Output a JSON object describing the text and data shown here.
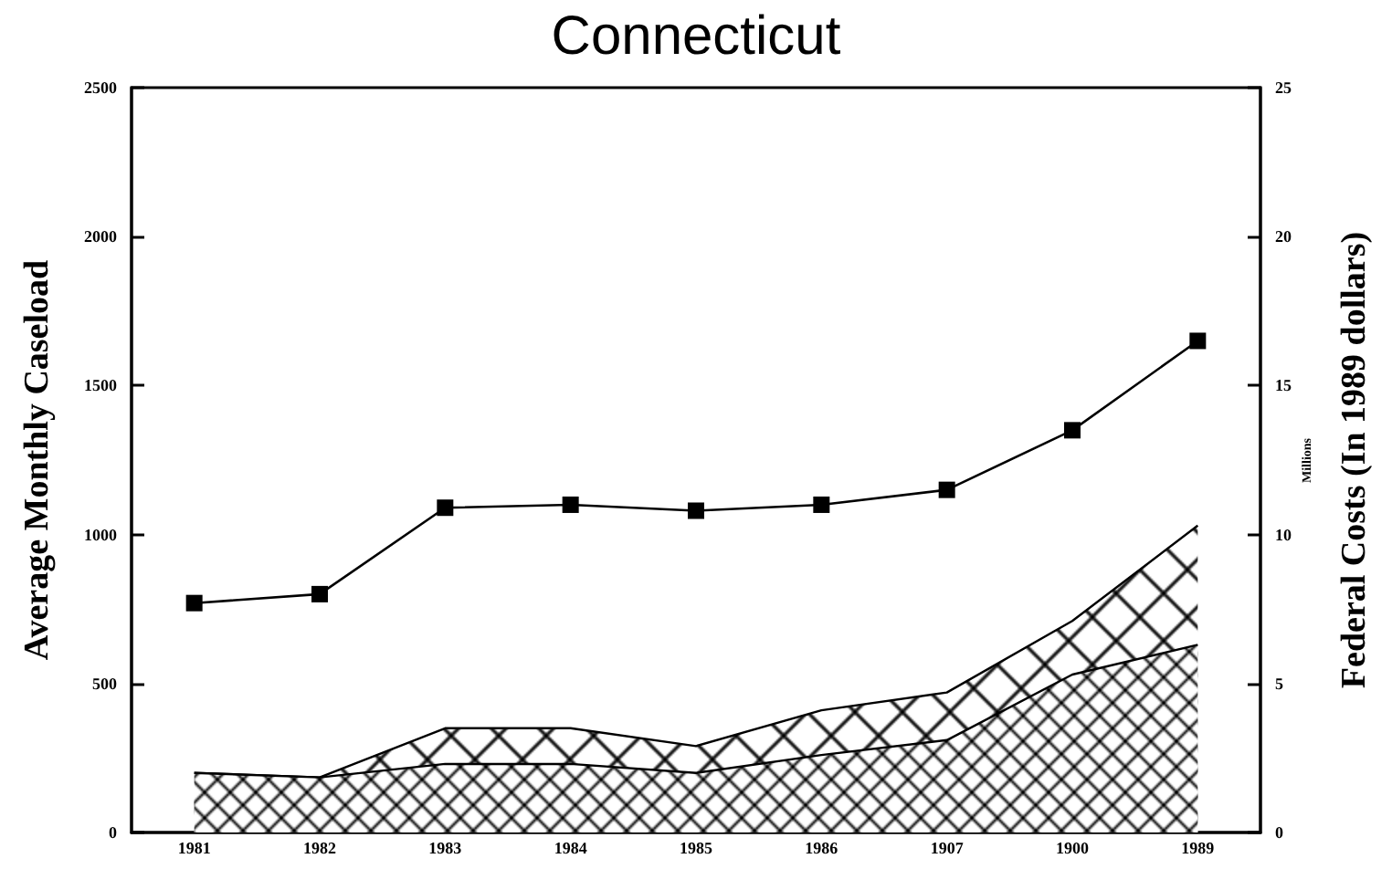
{
  "chart_data": {
    "type": "line",
    "title": "Connecticut",
    "ylabel": "Average Monthly Caseload",
    "y2label": "Federal Costs (In 1989 dollars)",
    "annotations": [
      "Millions"
    ],
    "categories": [
      "1981",
      "1982",
      "1983",
      "1984",
      "1985",
      "1986",
      "1907",
      "1900",
      "1989"
    ],
    "series": [
      {
        "type": "area",
        "axis": "y2",
        "color": "#000000",
        "values": [
          2.0,
          1.85,
          3.5,
          3.5,
          2.9,
          4.1,
          4.7,
          7.1,
          10.3
        ]
      },
      {
        "type": "area",
        "axis": "y2",
        "color": "#000000",
        "values": [
          2.0,
          1.85,
          2.3,
          2.3,
          2.0,
          2.6,
          3.1,
          5.3,
          6.3
        ]
      },
      {
        "color": "#000000",
        "marker": "square",
        "values": [
          770,
          800,
          1090,
          1100,
          1080,
          1100,
          1150,
          1350,
          1650
        ]
      }
    ],
    "ylim": [
      0,
      2500
    ],
    "yticks": [
      0,
      500,
      1000,
      1500,
      2000,
      2500
    ],
    "y2lim": [
      0,
      25
    ],
    "y2ticks": [
      0,
      5,
      10,
      15,
      20,
      25
    ],
    "grid": false
  }
}
